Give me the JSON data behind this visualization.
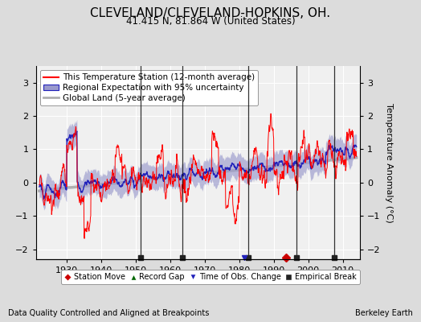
{
  "title": "CLEVELAND/CLEVELAND-HOPKINS, OH.",
  "subtitle": "41.415 N, 81.864 W (United States)",
  "ylabel": "Temperature Anomaly (°C)",
  "xlabel_left": "Data Quality Controlled and Aligned at Breakpoints",
  "xlabel_right": "Berkeley Earth",
  "ylim": [
    -2.3,
    3.5
  ],
  "xlim": [
    1921,
    2015
  ],
  "yticks": [
    -2,
    -1,
    0,
    1,
    2,
    3
  ],
  "xticks": [
    1930,
    1940,
    1950,
    1960,
    1970,
    1980,
    1990,
    2000,
    2010
  ],
  "title_fontsize": 11,
  "subtitle_fontsize": 8.5,
  "legend_fontsize": 7.5,
  "axis_fontsize": 8,
  "ylabel_fontsize": 8,
  "bg_color": "#dcdcdc",
  "plot_bg_color": "#f0f0f0",
  "grid_color": "#ffffff",
  "station_line_color": "#ff0000",
  "regional_line_color": "#2222bb",
  "regional_fill_color": "#9999cc",
  "global_line_color": "#b0b0b0",
  "vertical_line_color": "#111111",
  "station_move_color": "#cc0000",
  "record_gap_color": "#006600",
  "time_obs_color": "#2222bb",
  "empirical_break_color": "#222222",
  "empirical_breaks": [
    1951.5,
    1963.5,
    1982.5,
    1996.5,
    2007.5
  ],
  "station_moves": [
    1993.5
  ],
  "time_obs_changes": [
    1981.5
  ],
  "random_seed": 17
}
